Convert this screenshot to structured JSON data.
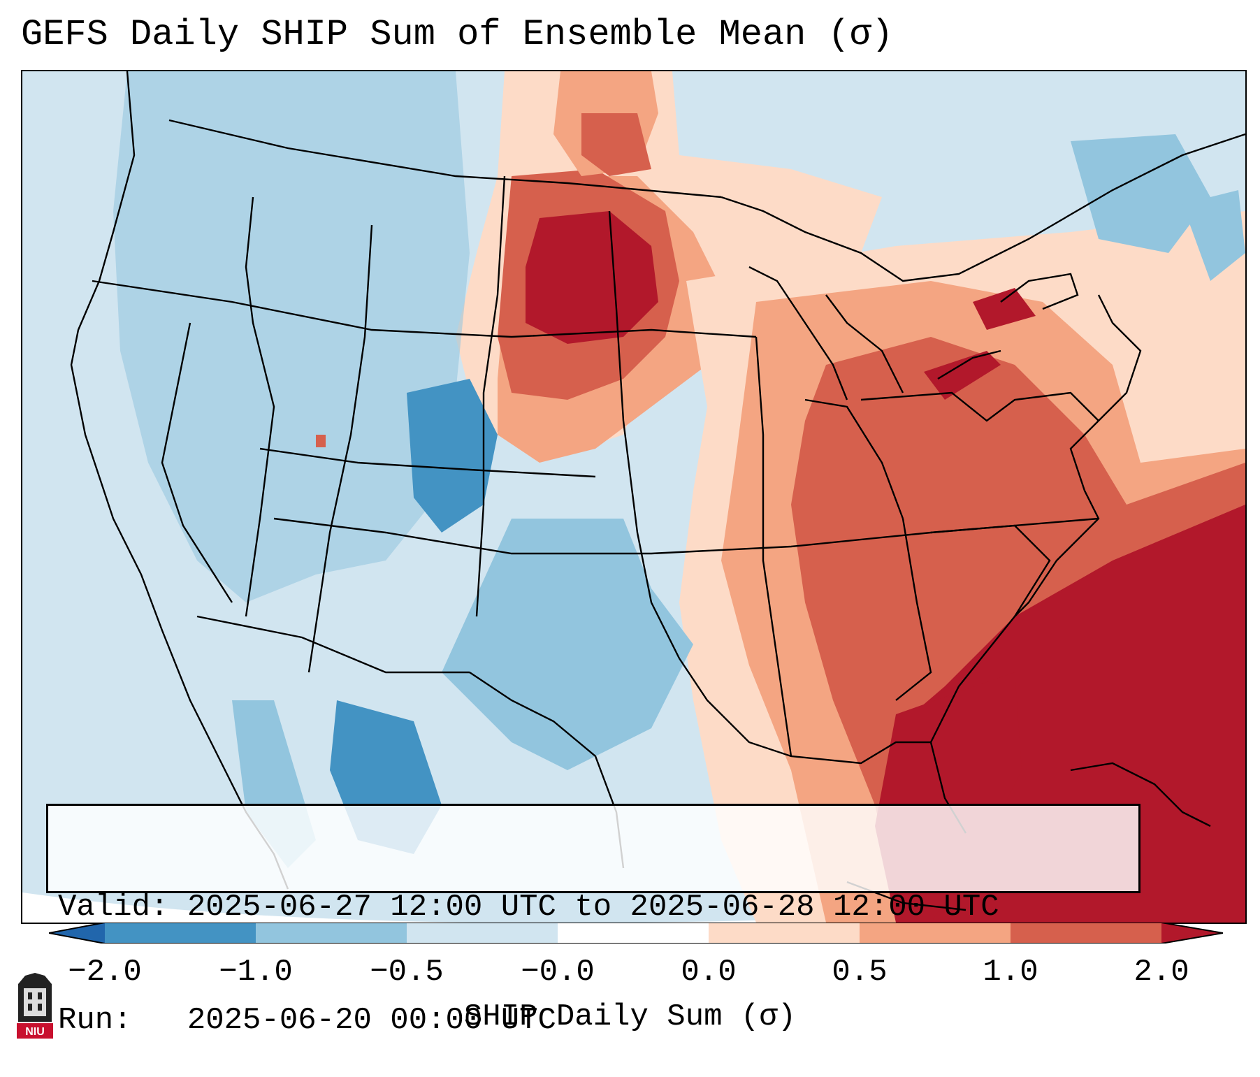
{
  "title": "GEFS Daily SHIP Sum of Ensemble Mean (σ)",
  "info": {
    "valid_label": "Valid:",
    "valid_value": "2025-06-27 12:00 UTC to 2025-06-28 12:00 UTC",
    "run_label": "Run:",
    "run_value": "2025-06-20 00:00 UTC"
  },
  "colorbar": {
    "label": "SHIP Daily Sum (σ)",
    "ticks": [
      "−2.0",
      "−1.0",
      "−0.5",
      "−0.0",
      "0.0",
      "0.5",
      "1.0",
      "2.0"
    ],
    "colors": [
      "#4393c3",
      "#92c5de",
      "#d1e5f0",
      "#ffffff",
      "#fddbc7",
      "#f4a582",
      "#d6604d",
      "#b2182b"
    ],
    "extend_low_color": "#2166ac",
    "extend_high_color": "#67001f"
  },
  "logo": {
    "text": "NIU"
  }
}
